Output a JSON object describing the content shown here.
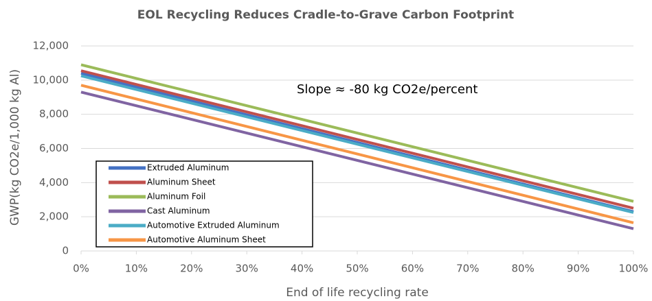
{
  "chart_data": {
    "type": "line",
    "title": "EOL Recycling Reduces Cradle-to-Grave Carbon Footprint",
    "xlabel": "End of life recycling rate",
    "ylabel": "GWP(kg CO2e/1,000 kg Al)",
    "annotation": "Slope ≈  -80 kg CO2e/percent",
    "x": [
      0,
      100
    ],
    "series": [
      {
        "name": "Extruded Aluminum",
        "color": "#4472c4",
        "values": [
          10400,
          2300
        ]
      },
      {
        "name": "Aluminum Sheet",
        "color": "#c0504d",
        "values": [
          10550,
          2500
        ]
      },
      {
        "name": "Aluminum Foil",
        "color": "#9bbb59",
        "values": [
          10900,
          2900
        ]
      },
      {
        "name": "Cast Aluminum",
        "color": "#8064a2",
        "values": [
          9300,
          1300
        ]
      },
      {
        "name": "Automotive Extruded Aluminum",
        "color": "#4bacc6",
        "values": [
          10250,
          2250
        ]
      },
      {
        "name": "Automotive Aluminum Sheet",
        "color": "#f79646",
        "values": [
          9700,
          1650
        ]
      }
    ],
    "xlim": [
      0,
      100
    ],
    "xticks": [
      {
        "value": 0,
        "label": "0%"
      },
      {
        "value": 10,
        "label": "10%"
      },
      {
        "value": 20,
        "label": "20%"
      },
      {
        "value": 30,
        "label": "30%"
      },
      {
        "value": 40,
        "label": "40%"
      },
      {
        "value": 50,
        "label": "50%"
      },
      {
        "value": 60,
        "label": "60%"
      },
      {
        "value": 70,
        "label": "70%"
      },
      {
        "value": 80,
        "label": "80%"
      },
      {
        "value": 90,
        "label": "90%"
      },
      {
        "value": 100,
        "label": "100%"
      }
    ],
    "ylim": [
      0,
      12000
    ],
    "yticks": [
      0,
      {
        "value": 2000,
        "label": "2,000"
      },
      {
        "value": 4000,
        "label": "4,000"
      },
      {
        "value": 6000,
        "label": "6,000"
      },
      {
        "value": 8000,
        "label": "8,000"
      },
      {
        "value": 10000,
        "label": "10,000"
      },
      {
        "value": 12000,
        "label": "12,000"
      }
    ],
    "grid": true
  }
}
